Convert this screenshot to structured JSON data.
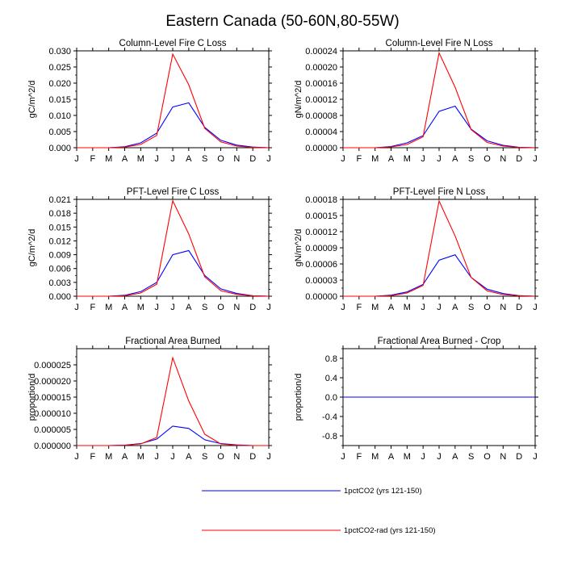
{
  "title": "Eastern Canada (50-60N,80-55W)",
  "months": [
    "J",
    "F",
    "M",
    "A",
    "M",
    "J",
    "J",
    "A",
    "S",
    "O",
    "N",
    "D",
    "J"
  ],
  "colors": {
    "series1": "#0000ff",
    "series2": "#ff0000"
  },
  "legend": [
    {
      "label": "1pctCO2 (yrs 121-150)",
      "color": "#0000ff"
    },
    {
      "label": "1pctCO2-rad (yrs 121-150)",
      "color": "#ff0000"
    }
  ],
  "chart_data": [
    {
      "type": "line",
      "title": "Column-Level Fire C Loss",
      "ylabel": "gC/m^2/d",
      "ylim": [
        0,
        0.03
      ],
      "yticks": [
        "0.000",
        "0.005",
        "0.010",
        "0.015",
        "0.020",
        "0.025",
        "0.030"
      ],
      "yticks_values": [
        0,
        0.005,
        0.01,
        0.015,
        0.02,
        0.025,
        0.03
      ],
      "series": [
        {
          "name": "1pctCO2 (yrs 121-150)",
          "values": [
            0,
            0,
            0,
            0.0003,
            0.0015,
            0.0045,
            0.0126,
            0.0139,
            0.0063,
            0.0023,
            0.0008,
            0.0002,
            0
          ]
        },
        {
          "name": "1pctCO2-rad (yrs 121-150)",
          "values": [
            0,
            0,
            0,
            0.0002,
            0.001,
            0.0038,
            0.029,
            0.0195,
            0.006,
            0.0018,
            0.0005,
            0.0001,
            0
          ]
        }
      ]
    },
    {
      "type": "line",
      "title": "Column-Level Fire N Loss",
      "ylabel": "gN/m^2/d",
      "ylim": [
        0,
        0.00024
      ],
      "yticks": [
        "0.00000",
        "0.00004",
        "0.00008",
        "0.00012",
        "0.00016",
        "0.00020",
        "0.00024"
      ],
      "yticks_values": [
        0,
        4e-05,
        8e-05,
        0.00012,
        0.00016,
        0.0002,
        0.00024
      ],
      "series": [
        {
          "name": "1pctCO2 (yrs 121-150)",
          "values": [
            0,
            0,
            0,
            3e-06,
            1.2e-05,
            3e-05,
            9e-05,
            0.000103,
            4.6e-05,
            1.7e-05,
            6e-06,
            1e-06,
            0
          ]
        },
        {
          "name": "1pctCO2-rad (yrs 121-150)",
          "values": [
            0,
            0,
            0,
            2e-06,
            8e-06,
            2.7e-05,
            0.000235,
            0.00015,
            4.5e-05,
            1.3e-05,
            4e-06,
            1e-06,
            0
          ]
        }
      ]
    },
    {
      "type": "line",
      "title": "PFT-Level Fire C Loss",
      "ylabel": "gC/m^2/d",
      "ylim": [
        0,
        0.021
      ],
      "yticks": [
        "0.000",
        "0.003",
        "0.006",
        "0.009",
        "0.012",
        "0.015",
        "0.018",
        "0.021"
      ],
      "yticks_values": [
        0,
        0.003,
        0.006,
        0.009,
        0.012,
        0.015,
        0.018,
        0.021
      ],
      "series": [
        {
          "name": "1pctCO2 (yrs 121-150)",
          "values": [
            0,
            0,
            0,
            0.0002,
            0.001,
            0.003,
            0.009,
            0.0099,
            0.0045,
            0.0016,
            0.0006,
            0.0001,
            0
          ]
        },
        {
          "name": "1pctCO2-rad (yrs 121-150)",
          "values": [
            0,
            0,
            0,
            0.0001,
            0.0007,
            0.0026,
            0.0207,
            0.0135,
            0.0042,
            0.0012,
            0.0004,
            0.0001,
            0
          ]
        }
      ]
    },
    {
      "type": "line",
      "title": "PFT-Level Fire N Loss",
      "ylabel": "gN/m^2/d",
      "ylim": [
        0,
        0.00018
      ],
      "yticks": [
        "0.00000",
        "0.00003",
        "0.00006",
        "0.00009",
        "0.00012",
        "0.00015",
        "0.00018"
      ],
      "yticks_values": [
        0,
        3e-05,
        6e-05,
        9e-05,
        0.00012,
        0.00015,
        0.00018
      ],
      "series": [
        {
          "name": "1pctCO2 (yrs 121-150)",
          "values": [
            0,
            0,
            0,
            2e-06,
            8e-06,
            2.2e-05,
            6.7e-05,
            7.7e-05,
            3.5e-05,
            1.3e-05,
            5e-06,
            1e-06,
            0
          ]
        },
        {
          "name": "1pctCO2-rad (yrs 121-150)",
          "values": [
            0,
            0,
            0,
            1e-06,
            6e-06,
            2e-05,
            0.000177,
            0.000112,
            3.5e-05,
            1e-05,
            3e-06,
            1e-06,
            0
          ]
        }
      ]
    },
    {
      "type": "line",
      "title": "Fractional Area Burned",
      "ylabel": "proportion/d",
      "ylim": [
        0,
        3e-05
      ],
      "yticks": [
        "0.000000",
        "0.000005",
        "0.000010",
        "0.000015",
        "0.000020",
        "0.000025"
      ],
      "yticks_values": [
        0,
        5e-06,
        1e-05,
        1.5e-05,
        2e-05,
        2.5e-05
      ],
      "series": [
        {
          "name": "1pctCO2 (yrs 121-150)",
          "values": [
            0,
            0,
            0,
            1e-07,
            6e-07,
            2e-06,
            6e-06,
            5.3e-06,
            1.8e-06,
            6e-07,
            2e-07,
            0,
            0
          ]
        },
        {
          "name": "1pctCO2-rad (yrs 121-150)",
          "values": [
            0,
            0,
            0,
            1e-07,
            5e-07,
            2.5e-06,
            2.72e-05,
            1.38e-05,
            3.5e-06,
            5e-07,
            1e-07,
            0,
            0
          ]
        }
      ]
    },
    {
      "type": "line",
      "title": "Fractional Area Burned - Crop",
      "ylabel": "proportion/d",
      "ylim": [
        -1,
        1
      ],
      "yticks": [
        "-0.8",
        "-0.4",
        "0.0",
        "0.4",
        "0.8"
      ],
      "yticks_values": [
        -0.8,
        -0.4,
        0,
        0.4,
        0.8
      ],
      "series": [
        {
          "name": "1pctCO2 (yrs 121-150)",
          "values": [
            0,
            0,
            0,
            0,
            0,
            0,
            0,
            0,
            0,
            0,
            0,
            0,
            0
          ]
        }
      ]
    }
  ]
}
